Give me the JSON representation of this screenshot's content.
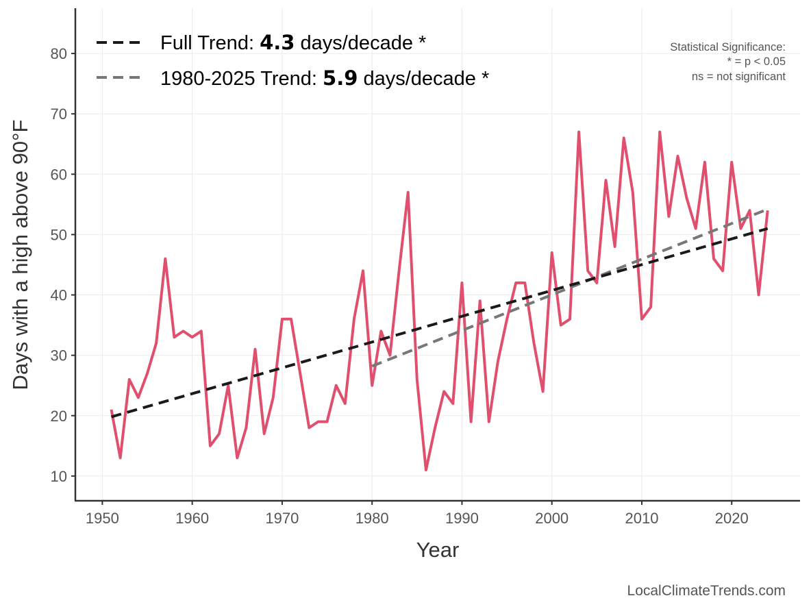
{
  "chart_data": {
    "type": "line",
    "title": "",
    "xlabel": "Year",
    "ylabel": "Days with a high above 90°F",
    "xlim": [
      1947,
      2027.6
    ],
    "ylim": [
      5.9,
      87.5
    ],
    "xticks": [
      1950,
      1960,
      1970,
      1980,
      1990,
      2000,
      2010,
      2020
    ],
    "yticks": [
      10,
      20,
      30,
      40,
      50,
      60,
      70,
      80
    ],
    "grid": true,
    "legend_position": "top-left",
    "x": [
      1951,
      1952,
      1953,
      1954,
      1955,
      1956,
      1957,
      1958,
      1959,
      1960,
      1961,
      1962,
      1963,
      1964,
      1965,
      1966,
      1967,
      1968,
      1969,
      1970,
      1971,
      1972,
      1973,
      1974,
      1975,
      1976,
      1977,
      1978,
      1979,
      1980,
      1981,
      1982,
      1983,
      1984,
      1985,
      1986,
      1987,
      1988,
      1989,
      1990,
      1991,
      1992,
      1993,
      1994,
      1995,
      1996,
      1997,
      1998,
      1999,
      2000,
      2001,
      2002,
      2003,
      2004,
      2005,
      2006,
      2007,
      2008,
      2009,
      2010,
      2011,
      2012,
      2013,
      2014,
      2015,
      2016,
      2017,
      2018,
      2019,
      2020,
      2021,
      2022,
      2023,
      2024
    ],
    "series": [
      {
        "name": "Days above 90°F",
        "color": "#e0506e",
        "values": [
          21,
          13,
          26,
          23,
          27,
          32,
          46,
          33,
          34,
          33,
          34,
          15,
          17,
          25,
          13,
          18,
          31,
          17,
          23,
          36,
          36,
          27,
          18,
          19,
          19,
          25,
          22,
          36,
          44,
          25,
          34,
          30,
          44,
          57,
          26,
          11,
          18,
          24,
          22,
          42,
          19,
          39,
          19,
          29,
          36,
          42,
          42,
          32,
          24,
          47,
          35,
          36,
          67,
          44,
          42,
          59,
          48,
          66,
          57,
          36,
          38,
          67,
          53,
          63,
          56,
          51,
          62,
          46,
          44,
          62,
          51,
          54,
          40,
          54
        ]
      }
    ],
    "trends": [
      {
        "name": "Full Trend",
        "label_prefix": "Full Trend: ",
        "value": "4.3",
        "label_suffix": " days/decade *",
        "color": "#1a1a1a",
        "x": [
          1951,
          2024
        ],
        "y": [
          19.8,
          51.0
        ]
      },
      {
        "name": "1980-2025 Trend",
        "label_prefix": "1980-2025 Trend: ",
        "value": "5.9",
        "label_suffix": " days/decade *",
        "color": "#777777",
        "x": [
          1980,
          2024
        ],
        "y": [
          28.2,
          54.2
        ]
      }
    ],
    "annotation": {
      "line1": "Statistical Significance:",
      "line2": "* = p < 0.05",
      "line3": "ns = not significant"
    },
    "credit": "LocalClimateTrends.com"
  }
}
